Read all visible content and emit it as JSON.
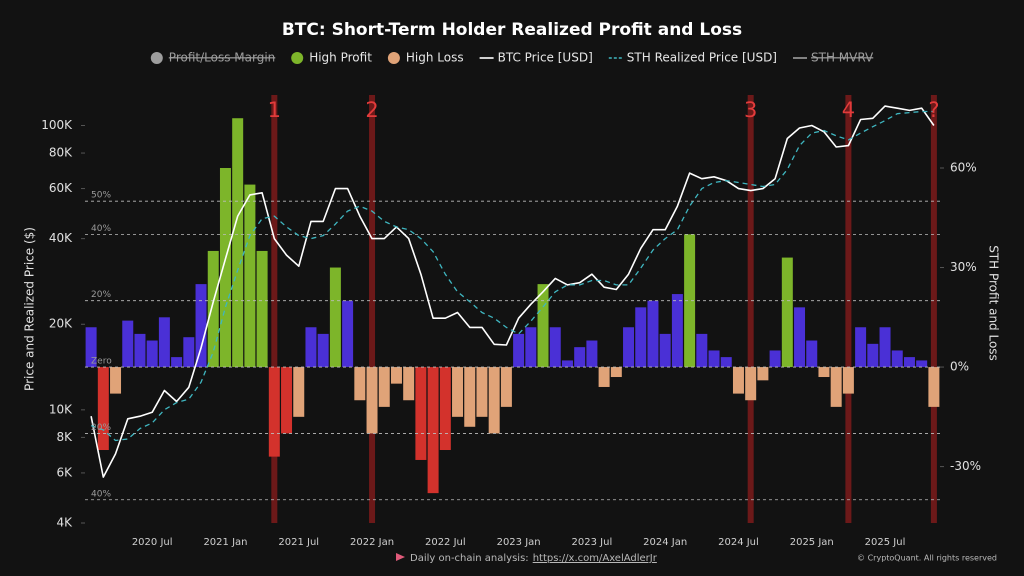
{
  "chart_data": {
    "type": "combo",
    "title": "BTC: Short-Term Holder Realized Profit and Loss",
    "y_label": "Price and Realized Price ($)",
    "y2_label": "STH Profit and Loss",
    "log_scale": true,
    "categories": [
      null,
      null,
      null,
      null,
      null,
      "2020 Jul",
      null,
      null,
      null,
      null,
      null,
      "2021 Jan",
      null,
      null,
      null,
      null,
      null,
      "2021 Jul",
      null,
      null,
      null,
      null,
      null,
      "2022 Jan",
      null,
      null,
      null,
      null,
      null,
      "2022 Jul",
      null,
      null,
      null,
      null,
      null,
      "2023 Jan",
      null,
      null,
      null,
      null,
      null,
      "2023 Jul",
      null,
      null,
      null,
      null,
      null,
      "2024 Jan",
      null,
      null,
      null,
      null,
      null,
      "2024 Jul",
      null,
      null,
      null,
      null,
      null,
      "2025 Jan",
      null,
      null,
      null,
      null,
      null,
      "2025 Jul",
      null,
      null,
      null,
      null
    ],
    "ylim": [
      4000,
      128000
    ],
    "yticks": [
      {
        "value": 4000,
        "label": "4K"
      },
      {
        "value": 6000,
        "label": "6K"
      },
      {
        "value": 8000,
        "label": "8K"
      },
      {
        "value": 10000,
        "label": "10K"
      },
      {
        "value": 20000,
        "label": "20K"
      },
      {
        "value": 40000,
        "label": "40K"
      },
      {
        "value": 60000,
        "label": "60K"
      },
      {
        "value": 80000,
        "label": "80K"
      },
      {
        "value": 100000,
        "label": "100K"
      }
    ],
    "y2lim": [
      -47,
      82
    ],
    "y2ticks": [
      {
        "value": -30,
        "label": "-30%"
      },
      {
        "value": 0,
        "label": "0%"
      },
      {
        "value": 30,
        "label": "30%"
      },
      {
        "value": 60,
        "label": "60%"
      }
    ],
    "reference_lines": [
      {
        "value": 50,
        "label": "50%"
      },
      {
        "value": 40,
        "label": "40%"
      },
      {
        "value": 20,
        "label": "20%"
      },
      {
        "value": 0,
        "label": "Zero"
      },
      {
        "value": -20,
        "label": "20%"
      },
      {
        "value": -40,
        "label": "40%"
      }
    ],
    "markers": [
      {
        "label": "1",
        "index": 15
      },
      {
        "label": "2",
        "index": 23
      },
      {
        "label": "3",
        "index": 54
      },
      {
        "label": "4",
        "index": 62
      },
      {
        "label": "?",
        "index": 69
      }
    ],
    "series": [
      {
        "name": "Profit/Loss Margin",
        "type": "bar",
        "color": "#9e9e9e",
        "hidden": true
      },
      {
        "name": "High Profit",
        "type": "bar",
        "axis": "y2",
        "color": "#7db52a",
        "values": [
          null,
          null,
          null,
          null,
          null,
          null,
          null,
          null,
          null,
          null,
          35,
          60,
          75,
          55,
          35,
          null,
          null,
          null,
          null,
          null,
          30,
          null,
          null,
          null,
          null,
          null,
          null,
          null,
          null,
          null,
          null,
          null,
          null,
          null,
          null,
          null,
          null,
          25,
          null,
          null,
          null,
          null,
          null,
          null,
          null,
          null,
          null,
          null,
          null,
          40,
          null,
          null,
          null,
          null,
          null,
          null,
          null,
          33,
          null,
          null,
          null,
          null,
          null,
          null,
          null,
          null,
          null,
          null,
          null,
          null
        ]
      },
      {
        "name": "High Loss",
        "type": "bar",
        "axis": "y2",
        "color": "#e0a378",
        "values": [
          null,
          null,
          -8,
          null,
          null,
          null,
          null,
          null,
          null,
          null,
          null,
          null,
          null,
          null,
          null,
          null,
          null,
          -15,
          null,
          null,
          null,
          null,
          -10,
          -20,
          -12,
          -5,
          -10,
          null,
          null,
          null,
          -15,
          -18,
          -15,
          -20,
          -12,
          null,
          null,
          null,
          null,
          null,
          null,
          null,
          -6,
          -3,
          null,
          null,
          null,
          null,
          null,
          null,
          null,
          null,
          null,
          -8,
          -10,
          -4,
          null,
          null,
          null,
          null,
          -3,
          -12,
          -8,
          null,
          null,
          null,
          null,
          null,
          null,
          -12
        ]
      },
      {
        "name": "BTC Price [USD]",
        "type": "line",
        "color": "#ffffff",
        "values": [
          9500,
          5800,
          7000,
          9300,
          9500,
          9800,
          11700,
          10700,
          12000,
          16500,
          24000,
          34000,
          48000,
          57000,
          58000,
          40000,
          35000,
          32000,
          46000,
          46000,
          60000,
          60000,
          48000,
          40000,
          40000,
          44000,
          40000,
          30000,
          21000,
          21000,
          22000,
          19500,
          19500,
          17000,
          16900,
          21000,
          23500,
          26000,
          29000,
          27500,
          28000,
          30000,
          27000,
          26500,
          30000,
          37000,
          43000,
          43000,
          52000,
          68000,
          65000,
          66000,
          64000,
          60000,
          59000,
          60000,
          65000,
          90000,
          98000,
          100000,
          95000,
          84000,
          85000,
          105000,
          106000,
          117000,
          115000,
          113000,
          115000,
          100000
        ]
      },
      {
        "name": "STH Realized Price [USD]",
        "type": "line",
        "dashed": true,
        "color": "#3fb6c0",
        "values": [
          8800,
          8500,
          7800,
          7900,
          8600,
          9000,
          10000,
          10600,
          10900,
          12500,
          16000,
          23000,
          31000,
          41000,
          47000,
          48000,
          44000,
          41000,
          40000,
          41000,
          45000,
          50000,
          52000,
          50000,
          46000,
          44000,
          43000,
          40000,
          36000,
          30000,
          26000,
          24000,
          22000,
          21000,
          19500,
          18500,
          20500,
          23000,
          26000,
          27500,
          27500,
          28500,
          28500,
          27500,
          27500,
          31500,
          36500,
          40000,
          43000,
          52000,
          60000,
          63000,
          64000,
          63000,
          62000,
          61000,
          62000,
          70000,
          85000,
          94000,
          96000,
          92000,
          89000,
          94000,
          99000,
          104000,
          110000,
          111000,
          112000,
          112000
        ]
      },
      {
        "name": "STH MVRV",
        "type": "line",
        "color": "#9e9e9e",
        "hidden": true
      },
      {
        "type": "bar",
        "axis": "y2",
        "color": "#4a30d6",
        "values": [
          12,
          null,
          null,
          14,
          10,
          8,
          15,
          3,
          9,
          25,
          null,
          null,
          null,
          null,
          null,
          null,
          null,
          null,
          12,
          10,
          null,
          20,
          null,
          null,
          null,
          null,
          null,
          null,
          null,
          null,
          null,
          null,
          null,
          null,
          null,
          10,
          12,
          null,
          12,
          2,
          6,
          8,
          null,
          null,
          12,
          18,
          20,
          10,
          22,
          null,
          10,
          5,
          3,
          null,
          null,
          null,
          5,
          null,
          18,
          8,
          null,
          null,
          null,
          12,
          7,
          12,
          5,
          3,
          2,
          null
        ]
      },
      {
        "type": "bar",
        "axis": "y2",
        "color": "#d3322c",
        "values": [
          null,
          -25,
          null,
          null,
          null,
          null,
          null,
          null,
          null,
          null,
          null,
          null,
          null,
          null,
          null,
          -27,
          -20,
          null,
          null,
          null,
          null,
          null,
          null,
          null,
          null,
          null,
          null,
          -28,
          -38,
          -25,
          null,
          null,
          null,
          null,
          null,
          null,
          null,
          null,
          null,
          null,
          null,
          null,
          null,
          null,
          null,
          null,
          null,
          null,
          null,
          null,
          null,
          null,
          null,
          null,
          null,
          null,
          null,
          null,
          null,
          null,
          null,
          null,
          null,
          null,
          null,
          null,
          null,
          null,
          null,
          null
        ]
      }
    ],
    "footer": {
      "note": "Daily on-chain analysis:",
      "link": "https://x.com/AxelAdlerJr",
      "copyright": "© CryptoQuant. All rights reserved"
    }
  }
}
